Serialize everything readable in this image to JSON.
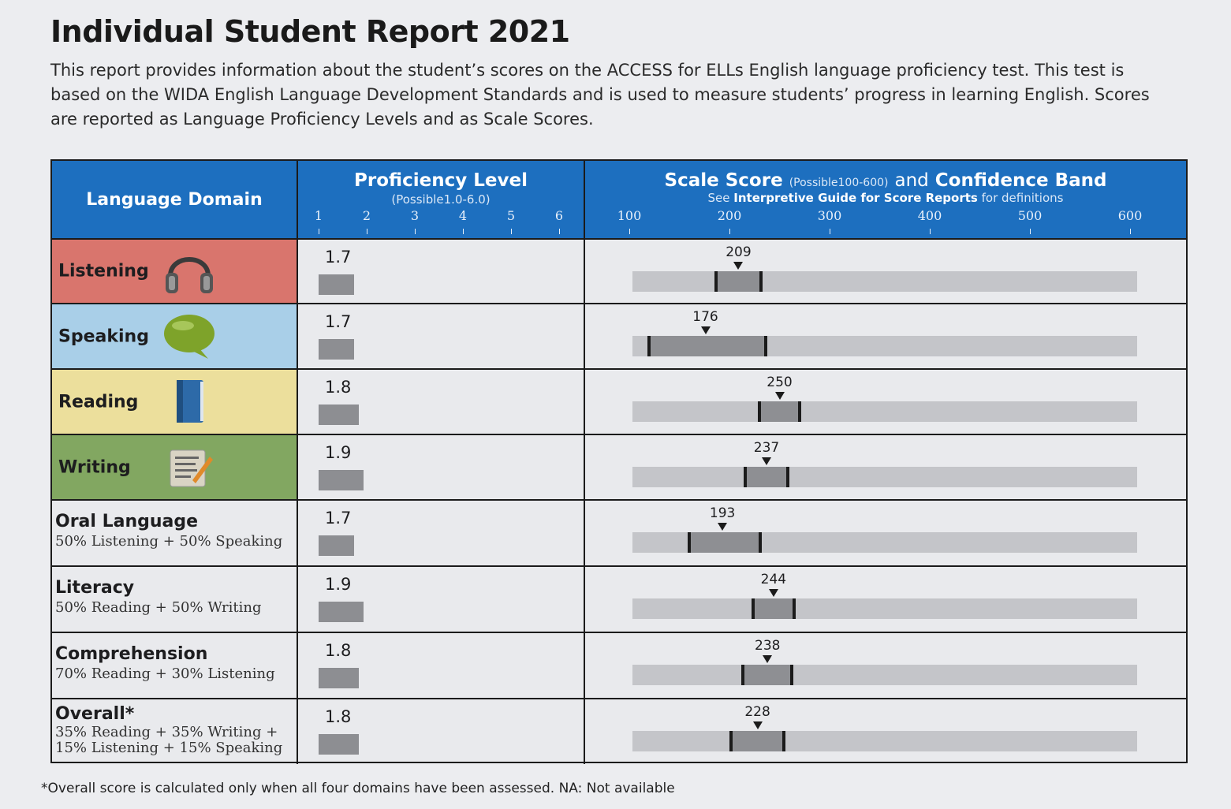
{
  "title": "Individual Student Report 2021",
  "intro": "This report provides information about the student’s scores on the ACCESS for ELLs English language proficiency test. This test is based on the WIDA English Language Development Standards and is used to measure students’ progress in learning English. Scores are reported as Language Proficiency Levels and as Scale Scores.",
  "header": {
    "domain": "Language Domain",
    "prof_title": "Proficiency Level",
    "prof_sub": "(Possible1.0-6.0)",
    "scale_title": "Scale Score",
    "scale_possible": "(Possible100-600)",
    "scale_and": "and",
    "scale_band": "Confidence Band",
    "see": "See",
    "guide": "Interpretive Guide for Score Reports",
    "defs": "for definitions",
    "prof_ticks": [
      "1",
      "2",
      "3",
      "4",
      "5",
      "6"
    ],
    "scale_ticks": [
      "100",
      "200",
      "300",
      "400",
      "500",
      "600"
    ]
  },
  "colors": {
    "listening": "#d9756d",
    "speaking": "#a9cfe8",
    "reading": "#ecdf9c",
    "writing": "#82a761",
    "header_blue": "#1d6fbf"
  },
  "rows": [
    {
      "name": "Listening",
      "icon": "headphones-icon",
      "level": "1.7",
      "score": "209",
      "band": [
        185,
        233
      ]
    },
    {
      "name": "Speaking",
      "icon": "speech-bubble-icon",
      "level": "1.7",
      "score": "176",
      "band": [
        118,
        238
      ]
    },
    {
      "name": "Reading",
      "icon": "book-icon",
      "level": "1.8",
      "score": "250",
      "band": [
        228,
        272
      ]
    },
    {
      "name": "Writing",
      "icon": "writing-paper-icon",
      "level": "1.9",
      "score": "237",
      "band": [
        214,
        260
      ]
    },
    {
      "name": "Oral Language",
      "formula": [
        "50% Listening + 50% Speaking"
      ],
      "level": "1.7",
      "score": "193",
      "band": [
        158,
        232
      ]
    },
    {
      "name": "Literacy",
      "formula": [
        "50% Reading + 50% Writing"
      ],
      "level": "1.9",
      "score": "244",
      "band": [
        222,
        266
      ]
    },
    {
      "name": "Comprehension",
      "formula": [
        "70% Reading + 30% Listening"
      ],
      "level": "1.8",
      "score": "238",
      "band": [
        212,
        264
      ]
    },
    {
      "name": "Overall*",
      "formula": [
        "35% Reading + 35% Writing +",
        "15% Listening + 15% Speaking"
      ],
      "level": "1.8",
      "score": "228",
      "band": [
        200,
        256
      ]
    }
  ],
  "footnote": "*Overall score is calculated only when all four domains have been assessed.  NA: Not available"
}
